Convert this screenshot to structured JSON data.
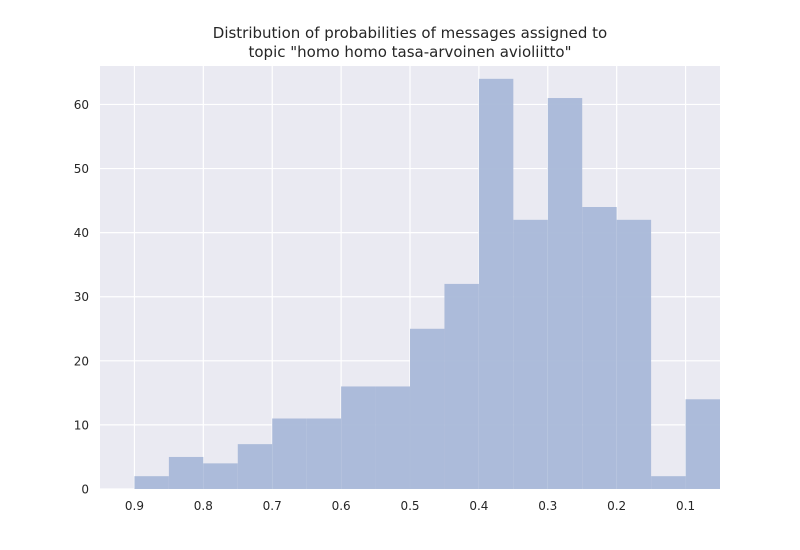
{
  "chart_data": {
    "type": "bar",
    "title_lines": [
      "Distribution of probabilities of messages assigned to",
      "topic \"homo homo tasa-arvoinen avioliitto\""
    ],
    "xlabel": "",
    "ylabel": "",
    "x_inverted": true,
    "xlim": [
      0.95,
      0.05
    ],
    "ylim": [
      0,
      66
    ],
    "xticks": [
      0.9,
      0.8,
      0.7,
      0.6,
      0.5,
      0.4,
      0.3,
      0.2,
      0.1
    ],
    "xtick_labels": [
      "0.9",
      "0.8",
      "0.7",
      "0.6",
      "0.5",
      "0.4",
      "0.3",
      "0.2",
      "0.1"
    ],
    "yticks": [
      0,
      10,
      20,
      30,
      40,
      50,
      60
    ],
    "ytick_labels": [
      "0",
      "10",
      "20",
      "30",
      "40",
      "50",
      "60"
    ],
    "bin_edges": [
      0.9,
      0.85,
      0.8,
      0.75,
      0.7,
      0.65,
      0.6,
      0.55,
      0.5,
      0.45,
      0.4,
      0.35,
      0.3,
      0.25,
      0.2,
      0.15,
      0.1,
      0.05
    ],
    "values": [
      2,
      5,
      4,
      7,
      11,
      11,
      16,
      16,
      25,
      32,
      64,
      42,
      61,
      44,
      42,
      2,
      14
    ],
    "bar_color": "#a9b8d8",
    "background_color": "#eaeaf2",
    "grid": true,
    "grid_color": "#ffffff"
  }
}
